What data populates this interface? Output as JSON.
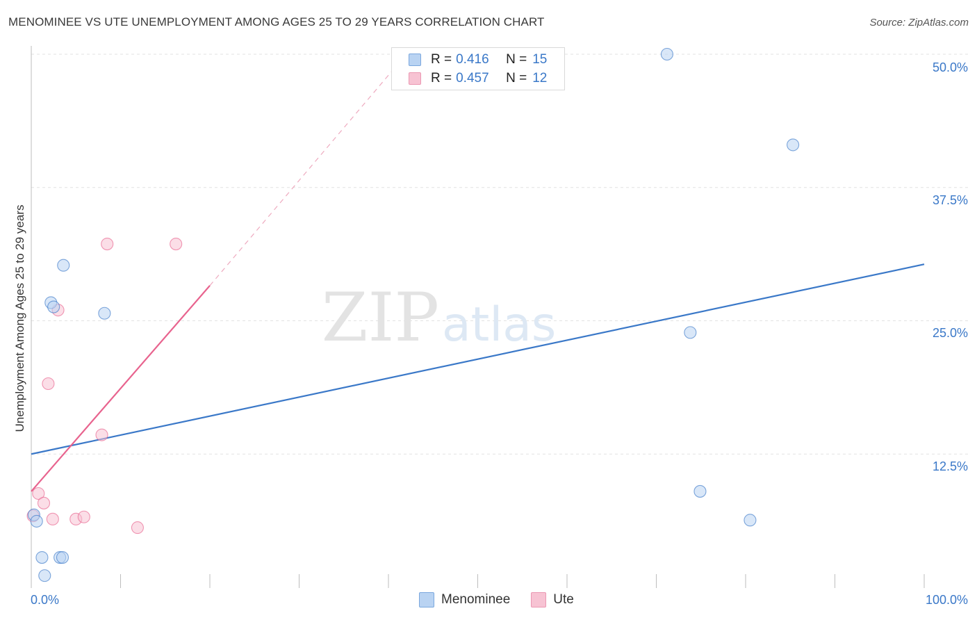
{
  "chart_data": {
    "type": "scatter",
    "title": "MENOMINEE VS UTE UNEMPLOYMENT AMONG AGES 25 TO 29 YEARS CORRELATION CHART",
    "source": "Source: ZipAtlas.com",
    "xlabel": "",
    "ylabel": "Unemployment Among Ages 25 to 29 years",
    "xlim": [
      0,
      100
    ],
    "ylim": [
      0,
      51.5
    ],
    "x_tick_labels": [
      {
        "value": 0,
        "label": "0.0%"
      },
      {
        "value": 100,
        "label": "100.0%"
      }
    ],
    "y_tick_labels": [
      {
        "value": 12.5,
        "label": "12.5%"
      },
      {
        "value": 25.0,
        "label": "25.0%"
      },
      {
        "value": 37.5,
        "label": "37.5%"
      },
      {
        "value": 50.0,
        "label": "50.0%"
      }
    ],
    "watermark": {
      "part1": "ZIP",
      "part2": "atlas"
    },
    "series": [
      {
        "name": "Menominee",
        "color": "#3a78c8",
        "fill": "#b9d3f2",
        "R": "0.416",
        "N": "15",
        "points": [
          [
            0.3,
            6.8
          ],
          [
            0.6,
            6.2
          ],
          [
            1.2,
            2.8
          ],
          [
            1.5,
            1.1
          ],
          [
            2.2,
            26.7
          ],
          [
            2.5,
            26.3
          ],
          [
            3.2,
            2.8
          ],
          [
            3.5,
            2.8
          ],
          [
            3.6,
            30.2
          ],
          [
            8.2,
            25.7
          ],
          [
            71.2,
            50.0
          ],
          [
            73.8,
            23.9
          ],
          [
            74.9,
            9.0
          ],
          [
            80.5,
            6.3
          ],
          [
            85.3,
            41.5
          ]
        ],
        "trendline": {
          "x": [
            0,
            100
          ],
          "y": [
            12.5,
            30.3
          ],
          "style": "solid"
        }
      },
      {
        "name": "Ute",
        "color": "#e8638e",
        "fill": "#f7c3d3",
        "R": "0.457",
        "N": "12",
        "points": [
          [
            0.2,
            6.7
          ],
          [
            0.8,
            8.8
          ],
          [
            1.4,
            7.9
          ],
          [
            1.9,
            19.1
          ],
          [
            2.4,
            6.4
          ],
          [
            3.0,
            26.0
          ],
          [
            5.0,
            6.4
          ],
          [
            5.9,
            6.6
          ],
          [
            7.9,
            14.3
          ],
          [
            8.5,
            32.2
          ],
          [
            11.9,
            5.6
          ],
          [
            16.2,
            32.2
          ]
        ],
        "trendline": {
          "x": [
            0,
            20
          ],
          "y": [
            9.0,
            28.3
          ],
          "style": "solid",
          "extension": {
            "x": [
              20,
              42
            ],
            "y": [
              28.3,
              50.0
            ],
            "style": "dashed"
          }
        }
      }
    ]
  },
  "legend": {
    "r_label": "R =",
    "n_label": "N ="
  }
}
